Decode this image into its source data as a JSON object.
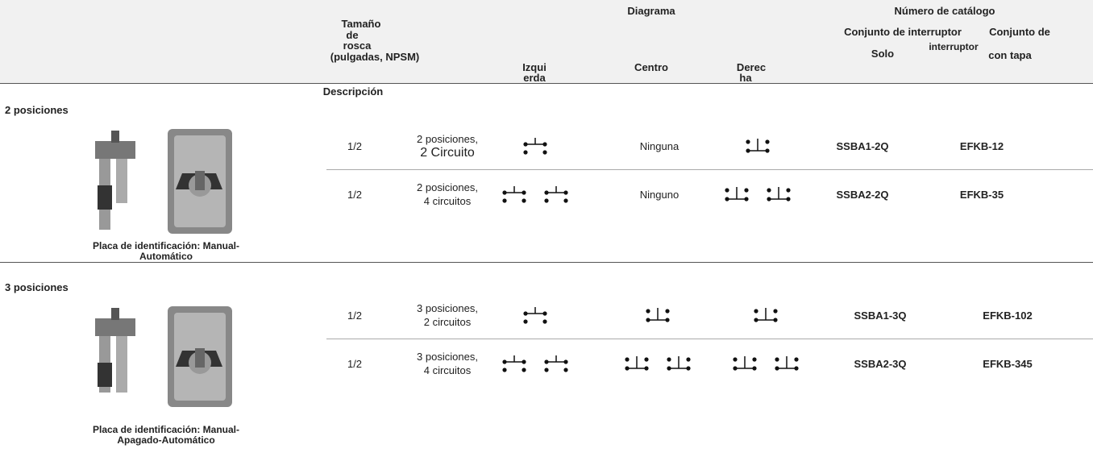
{
  "header": {
    "size": [
      "Tamaño",
      "de",
      "rosca",
      "(pulgadas, NPSM)"
    ],
    "description": "Descripción",
    "diagram": "Diagrama",
    "left": [
      "Izqui",
      "erda"
    ],
    "center": "Centro",
    "right": [
      "Derec",
      "ha"
    ],
    "catalog": "Número de catálogo",
    "switch_assembly": [
      "Conjunto de interruptor",
      "Solo"
    ],
    "with_cover": [
      "Conjunto de",
      "interruptor",
      "con tapa"
    ]
  },
  "sections": [
    {
      "title": "2 posiciones",
      "caption": [
        "Placa de identificación: Manual-",
        "Automático"
      ],
      "rows": [
        {
          "size": "1/2",
          "description": [
            "2 posiciones,",
            "2 Circuito"
          ],
          "center": "Ninguna",
          "switch": "SSBA1-2Q",
          "cover": "EFKB-12"
        },
        {
          "size": "1/2",
          "description": [
            "2 posiciones,",
            "4 circuitos"
          ],
          "center": "Ninguno",
          "switch": "SSBA2-2Q",
          "cover": "EFKB-35"
        }
      ]
    },
    {
      "title": "3 posiciones",
      "caption": [
        "Placa de identificación: Manual-",
        "Apagado-Automático"
      ],
      "rows": [
        {
          "size": "1/2",
          "description": [
            "3 posiciones,",
            "2 circuitos"
          ],
          "switch": "SSBA1-3Q",
          "cover": "EFKB-102"
        },
        {
          "size": "1/2",
          "description": [
            "3 posiciones,",
            "4 circuitos"
          ],
          "switch": "SSBA2-3Q",
          "cover": "EFKB-345"
        }
      ]
    }
  ]
}
